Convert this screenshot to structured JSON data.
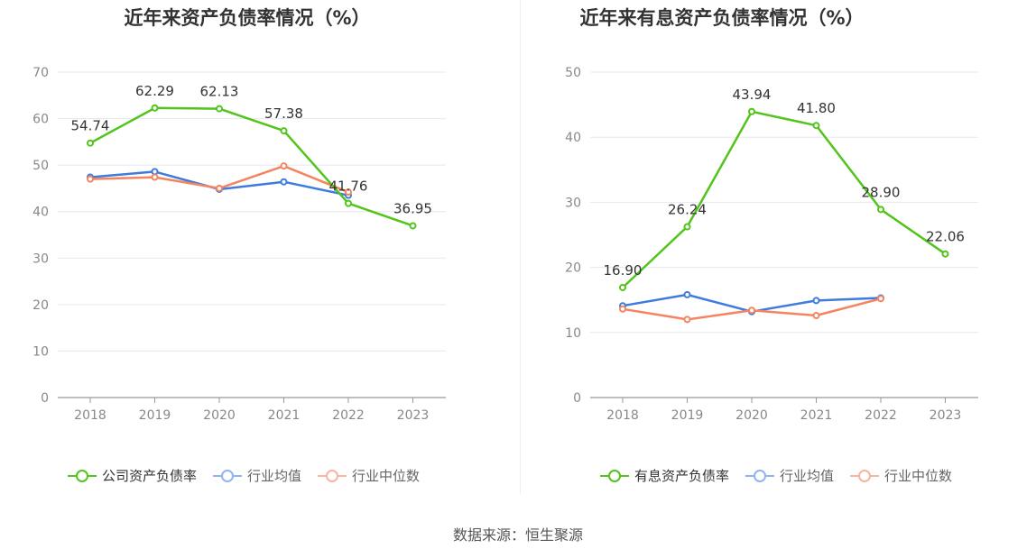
{
  "source": "数据来源：恒生聚源",
  "colors": {
    "company": "#52c41a",
    "industry_avg": "#3e7bdf",
    "industry_median": "#f4845f",
    "industry_avg_legend": "#8fb4ef",
    "industry_median_legend": "#f8b49c",
    "axis": "#999999",
    "grid": "#e6e8f0"
  },
  "chart_data": [
    {
      "type": "line",
      "title": "近年来资产负债率情况（%）",
      "x": [
        "2018",
        "2019",
        "2020",
        "2021",
        "2022",
        "2023"
      ],
      "ylim": [
        0,
        70
      ],
      "yticks": [
        0,
        10,
        20,
        30,
        40,
        50,
        60,
        70
      ],
      "grid": true,
      "legend_position": "bottom",
      "series": [
        {
          "name": "公司资产负债率",
          "key": "company",
          "values": [
            54.74,
            62.29,
            62.13,
            57.38,
            41.76,
            36.95
          ],
          "labels": [
            "54.74",
            "62.29",
            "62.13",
            "57.38",
            "41.76",
            "36.95"
          ]
        },
        {
          "name": "行业均值",
          "key": "industry_avg",
          "values": [
            47.4,
            48.6,
            44.8,
            46.4,
            43.5,
            null
          ]
        },
        {
          "name": "行业中位数",
          "key": "industry_median",
          "values": [
            47.0,
            47.4,
            45.0,
            49.8,
            44.2,
            null
          ]
        }
      ]
    },
    {
      "type": "line",
      "title": "近年来有息资产负债率情况（%）",
      "x": [
        "2018",
        "2019",
        "2020",
        "2021",
        "2022",
        "2023"
      ],
      "ylim": [
        0,
        50
      ],
      "yticks": [
        0,
        10,
        20,
        30,
        40,
        50
      ],
      "grid": true,
      "legend_position": "bottom",
      "series": [
        {
          "name": "有息资产负债率",
          "key": "company",
          "values": [
            16.9,
            26.24,
            43.94,
            41.8,
            28.9,
            22.06
          ],
          "labels": [
            "16.90",
            "26.24",
            "43.94",
            "41.80",
            "28.90",
            "22.06"
          ]
        },
        {
          "name": "行业均值",
          "key": "industry_avg",
          "values": [
            14.1,
            15.8,
            13.2,
            14.9,
            15.3,
            null
          ]
        },
        {
          "name": "行业中位数",
          "key": "industry_median",
          "values": [
            13.6,
            12.0,
            13.4,
            12.6,
            15.2,
            null
          ]
        }
      ]
    }
  ]
}
